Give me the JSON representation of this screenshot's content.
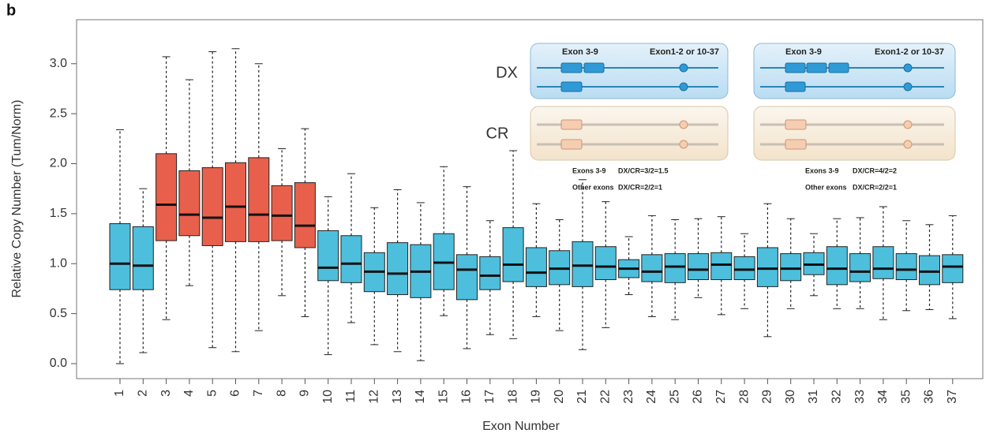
{
  "chart_data": {
    "type": "box",
    "panel_label": "b",
    "xlabel": "Exon Number",
    "ylabel": "Relative Copy Number (Tum/Norm)",
    "categories": [
      "1",
      "2",
      "3",
      "4",
      "5",
      "6",
      "7",
      "8",
      "9",
      "10",
      "11",
      "12",
      "13",
      "14",
      "15",
      "16",
      "17",
      "18",
      "19",
      "20",
      "21",
      "22",
      "23",
      "24",
      "25",
      "26",
      "27",
      "28",
      "29",
      "30",
      "31",
      "32",
      "33",
      "34",
      "35",
      "36",
      "37"
    ],
    "whislo": [
      0.0,
      0.11,
      0.44,
      0.78,
      0.16,
      0.12,
      0.33,
      0.68,
      0.47,
      0.09,
      0.41,
      0.19,
      0.12,
      0.03,
      0.48,
      0.15,
      0.29,
      0.25,
      0.47,
      0.33,
      0.14,
      0.36,
      0.69,
      0.47,
      0.44,
      0.66,
      0.49,
      0.55,
      0.27,
      0.55,
      0.68,
      0.55,
      0.55,
      0.44,
      0.53,
      0.54,
      0.45
    ],
    "q1": [
      0.74,
      0.74,
      1.23,
      1.28,
      1.18,
      1.22,
      1.22,
      1.23,
      1.16,
      0.83,
      0.81,
      0.72,
      0.69,
      0.66,
      0.74,
      0.64,
      0.74,
      0.82,
      0.77,
      0.79,
      0.77,
      0.84,
      0.86,
      0.82,
      0.81,
      0.84,
      0.84,
      0.84,
      0.77,
      0.83,
      0.89,
      0.79,
      0.82,
      0.85,
      0.84,
      0.79,
      0.81
    ],
    "median": [
      1.0,
      0.98,
      1.59,
      1.49,
      1.46,
      1.57,
      1.49,
      1.48,
      1.38,
      0.96,
      1.0,
      0.92,
      0.9,
      0.92,
      1.01,
      0.94,
      0.88,
      0.99,
      0.91,
      0.95,
      0.98,
      0.97,
      0.95,
      0.92,
      0.97,
      0.94,
      0.99,
      0.94,
      0.95,
      0.95,
      0.99,
      0.95,
      0.92,
      0.95,
      0.94,
      0.92,
      0.97
    ],
    "q3": [
      1.4,
      1.37,
      2.1,
      1.93,
      1.96,
      2.01,
      2.06,
      1.78,
      1.81,
      1.33,
      1.28,
      1.11,
      1.21,
      1.19,
      1.3,
      1.09,
      1.07,
      1.36,
      1.16,
      1.13,
      1.22,
      1.17,
      1.04,
      1.09,
      1.1,
      1.1,
      1.11,
      1.07,
      1.16,
      1.1,
      1.11,
      1.17,
      1.1,
      1.17,
      1.1,
      1.08,
      1.09
    ],
    "whishi": [
      2.34,
      1.75,
      3.07,
      2.84,
      3.12,
      3.15,
      3.0,
      2.15,
      2.35,
      1.67,
      1.9,
      1.56,
      1.74,
      1.61,
      1.97,
      1.77,
      1.43,
      2.13,
      1.6,
      1.44,
      1.84,
      1.62,
      1.27,
      1.48,
      1.44,
      1.45,
      1.47,
      1.3,
      1.6,
      1.45,
      1.3,
      1.45,
      1.46,
      1.57,
      1.43,
      1.39,
      1.48
    ],
    "colors": [
      "#4dbfdc",
      "#4dbfdc",
      "#e8604c",
      "#e8604c",
      "#e8604c",
      "#e8604c",
      "#e8604c",
      "#e8604c",
      "#e8604c",
      "#4dbfdc",
      "#4dbfdc",
      "#4dbfdc",
      "#4dbfdc",
      "#4dbfdc",
      "#4dbfdc",
      "#4dbfdc",
      "#4dbfdc",
      "#4dbfdc",
      "#4dbfdc",
      "#4dbfdc",
      "#4dbfdc",
      "#4dbfdc",
      "#4dbfdc",
      "#4dbfdc",
      "#4dbfdc",
      "#4dbfdc",
      "#4dbfdc",
      "#4dbfdc",
      "#4dbfdc",
      "#4dbfdc",
      "#4dbfdc",
      "#4dbfdc",
      "#4dbfdc",
      "#4dbfdc",
      "#4dbfdc",
      "#4dbfdc",
      "#4dbfdc"
    ],
    "ylim": [
      -0.15,
      3.44
    ],
    "yticks": [
      {
        "value": 0,
        "label": "0.0"
      },
      0.5,
      {
        "value": 1,
        "label": "1.0"
      },
      1.5,
      {
        "value": 2,
        "label": "2.0"
      },
      2.5,
      {
        "value": 3,
        "label": "3.0"
      }
    ],
    "inset": {
      "dx_label": "DX",
      "cr_label": "CR",
      "left": {
        "exon_a": "Exon 3-9",
        "exon_b": "Exon1-2 or 10-37",
        "note1_a": "Exons 3-9",
        "note1_b": "DX/CR=3/2=1.5",
        "note2_a": "Other exons",
        "note2_b": "DX/CR=2/2=1"
      },
      "right": {
        "exon_a": "Exon 3-9",
        "exon_b": "Exon1-2 or 10-37",
        "note1_a": "Exons 3-9",
        "note1_b": "DX/CR=4/2=2",
        "note2_a": "Other exons",
        "note2_b": "DX/CR=2/2=1"
      }
    }
  }
}
